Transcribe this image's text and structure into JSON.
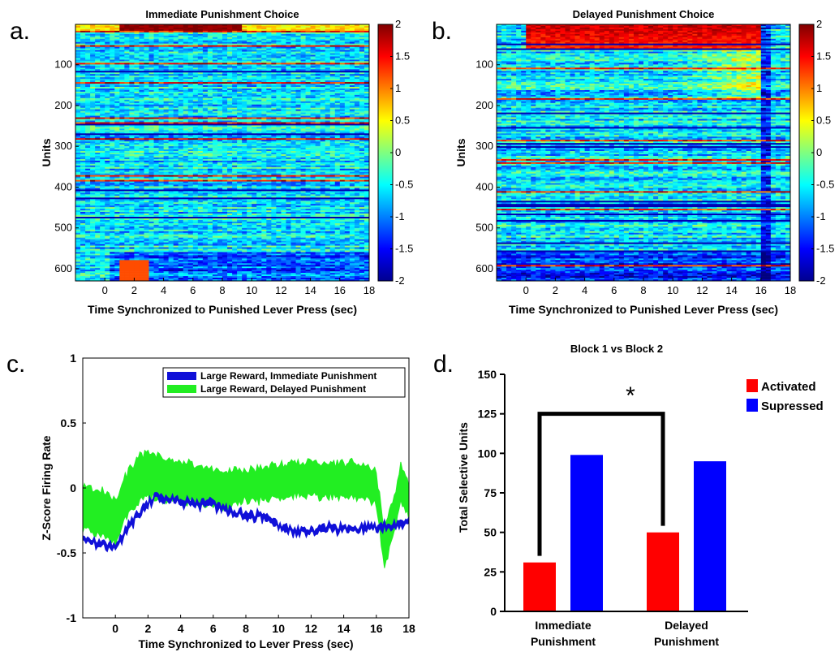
{
  "panels": {
    "a": {
      "label": "a."
    },
    "b": {
      "label": "b."
    },
    "c": {
      "label": "c."
    },
    "d": {
      "label": "d."
    }
  },
  "colors": {
    "activated": "#ff0000",
    "supressed": "#0000ff",
    "immediate_trace": "#1010d8",
    "delayed_trace": "#22ee22",
    "colormap": "jet"
  },
  "chart_data": [
    {
      "id": "a",
      "type": "heatmap",
      "title": "Immediate Punishment Choice",
      "xlabel": "Time Synchronized to Punished Lever Press (sec)",
      "ylabel": "Units",
      "xticks": [
        0,
        2,
        4,
        6,
        8,
        10,
        12,
        14,
        16,
        18
      ],
      "xlim": [
        -2,
        18
      ],
      "yticks": [
        100,
        200,
        300,
        400,
        500,
        600
      ],
      "ylim": [
        1,
        630
      ],
      "colorbar": {
        "ticks": [
          2,
          1.5,
          1,
          0.5,
          0,
          -0.5,
          -1,
          -1.5,
          -2
        ],
        "range": [
          -2,
          2
        ]
      },
      "values": "per-unit z-scored firing; mostly near -0.5; strong activation (~2) in units 1-15 from 1 to 9.5 s; suppression in units 560-630 after 0 s"
    },
    {
      "id": "b",
      "type": "heatmap",
      "title": "Delayed Punishment Choice",
      "xlabel": "Time Synchronized to Punished Lever Press (sec)",
      "ylabel": "Units",
      "xticks": [
        0,
        2,
        4,
        6,
        8,
        10,
        12,
        14,
        16,
        18
      ],
      "xlim": [
        -2,
        18
      ],
      "yticks": [
        100,
        200,
        300,
        400,
        500,
        600
      ],
      "ylim": [
        1,
        630
      ],
      "colorbar": {
        "ticks": [
          2,
          1.5,
          1,
          0.5,
          0,
          -0.5,
          -1,
          -1.5,
          -2
        ],
        "range": [
          -2,
          2
        ]
      },
      "values": "per-unit z-scored firing; strong activation (1.5-2) in units 1-60 from 0 to 16 s; ramping elevation toward 14 s; dip at 16-16.8 s"
    },
    {
      "id": "c",
      "type": "line",
      "xlabel": "Time Synchronized to Lever Press (sec)",
      "ylabel": "Z-Score Firing Rate",
      "xticks": [
        0,
        2,
        4,
        6,
        8,
        10,
        12,
        14,
        16,
        18
      ],
      "xlim": [
        -2,
        18
      ],
      "yticks": [
        1,
        0.5,
        0,
        -0.5,
        -1
      ],
      "ylim": [
        -1,
        1
      ],
      "legend": "top-right",
      "series": [
        {
          "name": "Large Reward, Immediate Punishment",
          "x": [
            -2,
            -1,
            0,
            0.5,
            1,
            1.5,
            2,
            2.5,
            3,
            4,
            5,
            6,
            7,
            8,
            9,
            10,
            11,
            12,
            13,
            14,
            15,
            16,
            16.5,
            17,
            17.5,
            18
          ],
          "mean": [
            -0.37,
            -0.43,
            -0.46,
            -0.36,
            -0.27,
            -0.2,
            -0.12,
            -0.06,
            -0.08,
            -0.1,
            -0.13,
            -0.13,
            -0.18,
            -0.21,
            -0.22,
            -0.3,
            -0.33,
            -0.34,
            -0.3,
            -0.32,
            -0.31,
            -0.3,
            -0.29,
            -0.28,
            -0.27,
            -0.25
          ],
          "sem": [
            0.02,
            0.02,
            0.02,
            0.02,
            0.02,
            0.02,
            0.02,
            0.02,
            0.02,
            0.02,
            0.02,
            0.02,
            0.02,
            0.02,
            0.02,
            0.02,
            0.02,
            0.02,
            0.02,
            0.02,
            0.02,
            0.02,
            0.02,
            0.02,
            0.02,
            0.02
          ]
        },
        {
          "name": "Large Reward, Delayed Punishment",
          "x": [
            -2,
            -1,
            0,
            0.5,
            1,
            1.5,
            2,
            2.5,
            3,
            4,
            5,
            6,
            7,
            8,
            9,
            10,
            11,
            12,
            13,
            14,
            15,
            16,
            16.5,
            17,
            17.5,
            18
          ],
          "mean": [
            -0.16,
            -0.18,
            -0.25,
            -0.1,
            0.0,
            0.07,
            0.1,
            0.08,
            0.07,
            0.05,
            0.03,
            0.0,
            0.0,
            0.02,
            0.03,
            0.05,
            0.07,
            0.07,
            0.06,
            0.07,
            0.06,
            0.0,
            -0.45,
            -0.25,
            0.03,
            -0.1
          ],
          "sem": [
            0.17,
            0.17,
            0.17,
            0.17,
            0.17,
            0.17,
            0.17,
            0.17,
            0.16,
            0.15,
            0.15,
            0.14,
            0.13,
            0.12,
            0.13,
            0.13,
            0.13,
            0.13,
            0.13,
            0.13,
            0.13,
            0.12,
            0.15,
            0.14,
            0.14,
            0.13
          ]
        }
      ]
    },
    {
      "id": "d",
      "type": "bar",
      "title": "Block 1 vs Block 2",
      "ylabel": "Total Selective Units",
      "categories": [
        "Immediate\nPunishment",
        "Delayed\nPunishment"
      ],
      "yticks": [
        0,
        25,
        50,
        75,
        100,
        125,
        150
      ],
      "ylim": [
        0,
        150
      ],
      "legend": "top-right",
      "annotation": "*",
      "series": [
        {
          "name": "Activated",
          "values": [
            31,
            50
          ]
        },
        {
          "name": "Supressed",
          "values": [
            99,
            95
          ]
        }
      ]
    }
  ]
}
